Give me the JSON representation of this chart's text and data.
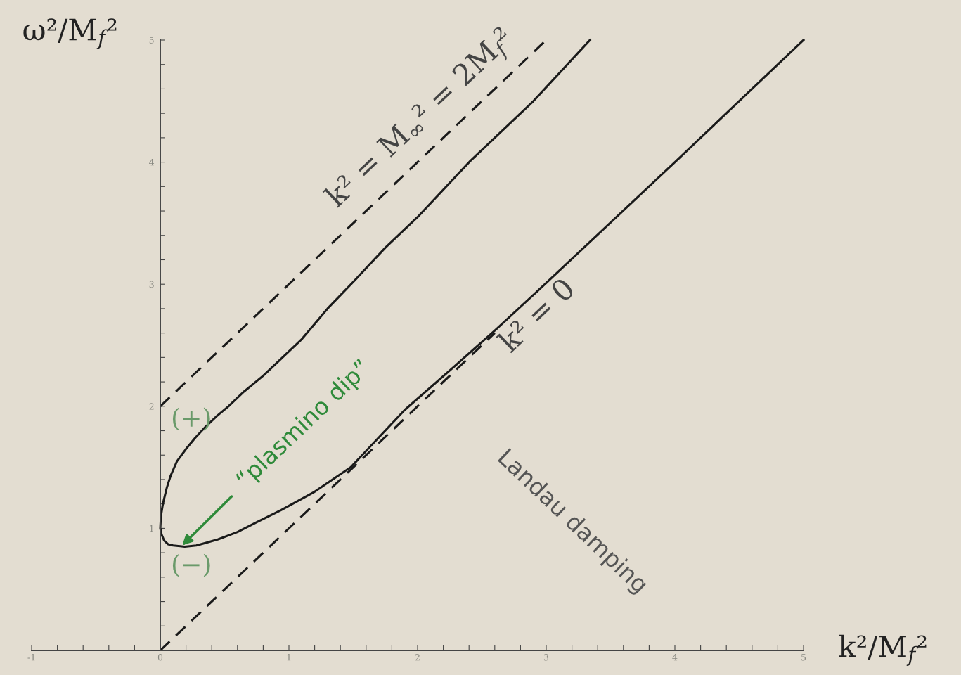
{
  "chart_data": {
    "type": "line",
    "xlabel": "k²/M$_{f}$²",
    "ylabel": "ω²/M$_{f}$²",
    "xlim": [
      -1,
      5
    ],
    "ylim": [
      0,
      5
    ],
    "xticks": [
      -1,
      {
        "value": -0.8,
        "label": null
      },
      {
        "value": -0.6,
        "label": null
      },
      {
        "value": -0.4,
        "label": null
      },
      {
        "value": -0.2,
        "label": null
      },
      0,
      {
        "value": 0.2,
        "label": null
      },
      {
        "value": 0.4,
        "label": null
      },
      {
        "value": 0.6,
        "label": null
      },
      {
        "value": 0.8,
        "label": null
      },
      1,
      {
        "value": 1.2,
        "label": null
      },
      {
        "value": 1.4,
        "label": null
      },
      {
        "value": 1.6,
        "label": null
      },
      {
        "value": 1.8,
        "label": null
      },
      2,
      {
        "value": 2.2,
        "label": null
      },
      {
        "value": 2.4,
        "label": null
      },
      {
        "value": 2.6,
        "label": null
      },
      {
        "value": 2.8,
        "label": null
      },
      3,
      {
        "value": 3.2,
        "label": null
      },
      {
        "value": 3.4,
        "label": null
      },
      {
        "value": 3.6,
        "label": null
      },
      {
        "value": 3.8,
        "label": null
      },
      4,
      {
        "value": 4.2,
        "label": null
      },
      {
        "value": 4.4,
        "label": null
      },
      {
        "value": 4.6,
        "label": null
      },
      {
        "value": 4.8,
        "label": null
      },
      5
    ],
    "yticks": [
      {
        "value": 0.2,
        "label": null
      },
      {
        "value": 0.4,
        "label": null
      },
      {
        "value": 0.6,
        "label": null
      },
      {
        "value": 0.8,
        "label": null
      },
      1,
      {
        "value": 1.2,
        "label": null
      },
      {
        "value": 1.4,
        "label": null
      },
      {
        "value": 1.6,
        "label": null
      },
      {
        "value": 1.8,
        "label": null
      },
      2,
      {
        "value": 2.2,
        "label": null
      },
      {
        "value": 2.4,
        "label": null
      },
      {
        "value": 2.6,
        "label": null
      },
      {
        "value": 2.8,
        "label": null
      },
      3,
      {
        "value": 3.2,
        "label": null
      },
      {
        "value": 3.4,
        "label": null
      },
      {
        "value": 3.6,
        "label": null
      },
      {
        "value": 3.8,
        "label": null
      },
      4,
      {
        "value": 4.2,
        "label": null
      },
      {
        "value": 4.4,
        "label": null
      },
      {
        "value": 4.6,
        "label": null
      },
      {
        "value": 4.8,
        "label": null
      },
      5
    ],
    "grid": false,
    "legend": false,
    "marker": "none",
    "series": [
      {
        "color": "#1a1a1a",
        "line_style": "dashed",
        "x": [
          0,
          3
        ],
        "values": [
          2,
          5
        ]
      },
      {
        "color": "#1a1a1a",
        "line_style": "dashed",
        "x": [
          0,
          2.6
        ],
        "values": [
          0,
          2.6
        ]
      },
      {
        "color": "#1a1a1a",
        "line_style": "solid",
        "x": [
          3.34,
          2.9,
          2.41,
          2.0,
          1.75,
          1.51,
          1.3,
          1.1,
          0.95,
          0.8,
          0.65,
          0.53,
          0.44,
          0.35,
          0.27,
          0.2,
          0.13,
          0.08,
          0.05,
          0.02,
          0.005,
          0,
          0.01,
          0.03,
          0.06,
          0.1,
          0.19,
          0.28,
          0.35,
          0.45,
          0.6,
          0.75,
          0.94,
          1.2,
          1.48,
          1.9,
          2.3,
          2.6,
          3,
          4,
          5
        ],
        "values": [
          5,
          4.5,
          4.01,
          3.55,
          3.3,
          3.03,
          2.8,
          2.55,
          2.4,
          2.25,
          2.12,
          2.0,
          1.92,
          1.83,
          1.74,
          1.65,
          1.55,
          1.43,
          1.33,
          1.2,
          1.1,
          1,
          0.95,
          0.9,
          0.87,
          0.86,
          0.85,
          0.86,
          0.88,
          0.91,
          0.97,
          1.05,
          1.15,
          1.3,
          1.5,
          1.97,
          2.34,
          2.62,
          3.01,
          4,
          5
        ]
      }
    ],
    "annotations": [
      "k² = M$_{∞}$² = 2M$_{f}$²",
      "k² = 0",
      {
        "text": "“plasmino dip”",
        "x": 0.17,
        "y": 0.86
      },
      "(+)",
      "(−)",
      "Landau damping"
    ]
  }
}
